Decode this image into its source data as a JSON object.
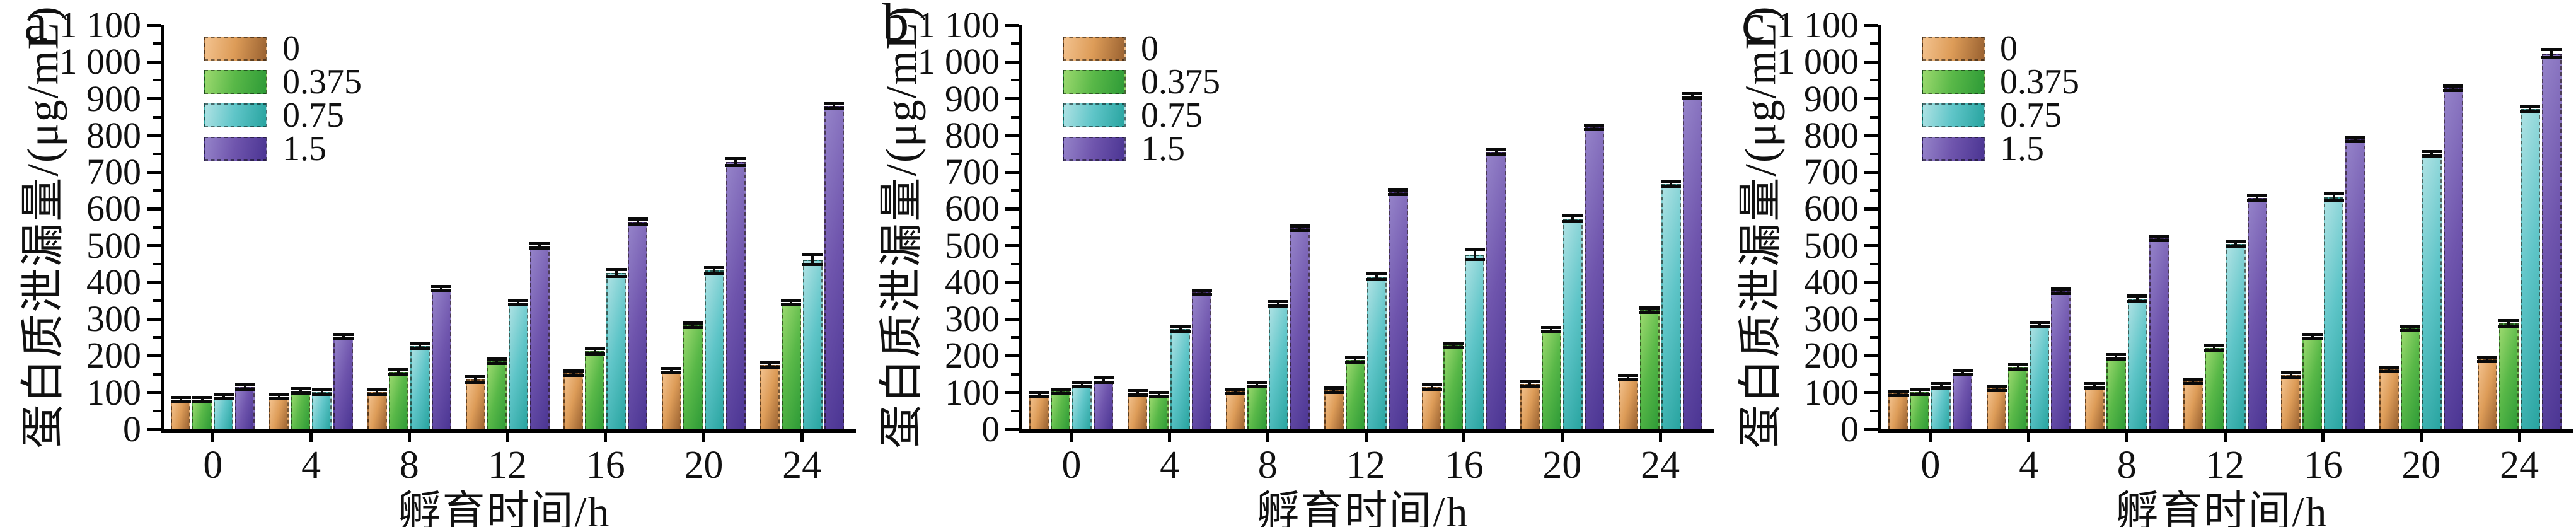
{
  "figure": {
    "y_axis_label": "蛋白质泄漏量/(μg/mL)",
    "x_axis_label": "孵育时间/h",
    "y_ticks": [
      "0",
      "100",
      "200",
      "300",
      "400",
      "500",
      "600",
      "700",
      "800",
      "900",
      "1 000",
      "1 100"
    ],
    "y_major_step": 100,
    "y_minor_step": 50,
    "background_color": "#ffffff",
    "axis_color": "#000000",
    "legend": [
      {
        "label": "0",
        "colors": [
          "#f3c28e",
          "#dd9c58",
          "#9a6231"
        ]
      },
      {
        "label": "0.375",
        "colors": [
          "#9bd96e",
          "#59b848",
          "#2e9b37"
        ]
      },
      {
        "label": "0.75",
        "colors": [
          "#aee2e4",
          "#5fc5c8",
          "#28a4a0"
        ]
      },
      {
        "label": "1.5",
        "colors": [
          "#9583c9",
          "#6f55ad",
          "#4b3593"
        ]
      }
    ]
  },
  "chart_data": [
    {
      "type": "bar",
      "panel_label": "a",
      "title": "",
      "xlabel": "孵育时间/h",
      "ylabel": "蛋白质泄漏量/(μg/mL)",
      "ylim": [
        0,
        1100
      ],
      "grid": false,
      "error_bars": true,
      "legend_position": "upper-left-inside",
      "categories": [
        "0",
        "4",
        "8",
        "12",
        "16",
        "20",
        "24"
      ],
      "series": [
        {
          "name": "0",
          "values": [
            80,
            90,
            102,
            135,
            152,
            160,
            175
          ],
          "err": [
            6,
            8,
            8,
            12,
            10,
            8,
            10
          ]
        },
        {
          "name": "0.375",
          "values": [
            80,
            105,
            157,
            185,
            212,
            283,
            345
          ],
          "err": [
            8,
            7,
            8,
            10,
            12,
            8,
            6
          ]
        },
        {
          "name": "0.75",
          "values": [
            90,
            102,
            226,
            345,
            425,
            432,
            462
          ],
          "err": [
            8,
            8,
            12,
            10,
            14,
            12,
            18
          ]
        },
        {
          "name": "1.5",
          "values": [
            115,
            253,
            383,
            500,
            565,
            728,
            880
          ],
          "err": [
            5,
            8,
            6,
            8,
            12,
            14,
            8
          ]
        }
      ]
    },
    {
      "type": "bar",
      "panel_label": "b",
      "title": "",
      "xlabel": "孵育时间/h",
      "ylabel": "蛋白质泄漏量/(μg/mL)",
      "ylim": [
        0,
        1100
      ],
      "grid": false,
      "error_bars": true,
      "legend_position": "upper-left-inside",
      "categories": [
        "0",
        "4",
        "8",
        "12",
        "16",
        "20",
        "24"
      ],
      "series": [
        {
          "name": "0",
          "values": [
            95,
            99,
            103,
            107,
            115,
            124,
            140
          ],
          "err": [
            5,
            7,
            5,
            6,
            8,
            8,
            4
          ]
        },
        {
          "name": "0.375",
          "values": [
            103,
            94,
            122,
            188,
            228,
            271,
            324
          ],
          "err": [
            5,
            6,
            5,
            6,
            8,
            8,
            8
          ]
        },
        {
          "name": "0.75",
          "values": [
            121,
            273,
            342,
            415,
            476,
            574,
            668
          ],
          "err": [
            6,
            8,
            10,
            12,
            18,
            12,
            10
          ]
        },
        {
          "name": "1.5",
          "values": [
            133,
            373,
            548,
            645,
            755,
            822,
            908
          ],
          "err": [
            5,
            5,
            6,
            8,
            8,
            10,
            10
          ]
        }
      ]
    },
    {
      "type": "bar",
      "panel_label": "c",
      "title": "",
      "xlabel": "孵育时间/h",
      "ylabel": "蛋白质泄漏量/(μg/mL)",
      "ylim": [
        0,
        1100
      ],
      "grid": false,
      "error_bars": true,
      "legend_position": "upper-left-inside",
      "categories": [
        "0",
        "4",
        "8",
        "12",
        "16",
        "20",
        "24"
      ],
      "series": [
        {
          "name": "0",
          "values": [
            98,
            112,
            118,
            130,
            148,
            163,
            190
          ],
          "err": [
            5,
            6,
            5,
            8,
            8,
            8,
            4
          ]
        },
        {
          "name": "0.375",
          "values": [
            102,
            170,
            197,
            222,
            252,
            275,
            288
          ],
          "err": [
            6,
            8,
            10,
            6,
            8,
            8,
            12
          ]
        },
        {
          "name": "0.75",
          "values": [
            118,
            285,
            355,
            505,
            632,
            750,
            871
          ],
          "err": [
            6,
            8,
            12,
            10,
            15,
            8,
            12
          ]
        },
        {
          "name": "1.5",
          "values": [
            155,
            375,
            520,
            630,
            790,
            928,
            1023
          ],
          "err": [
            6,
            6,
            6,
            8,
            10,
            8,
            15
          ]
        }
      ]
    }
  ]
}
